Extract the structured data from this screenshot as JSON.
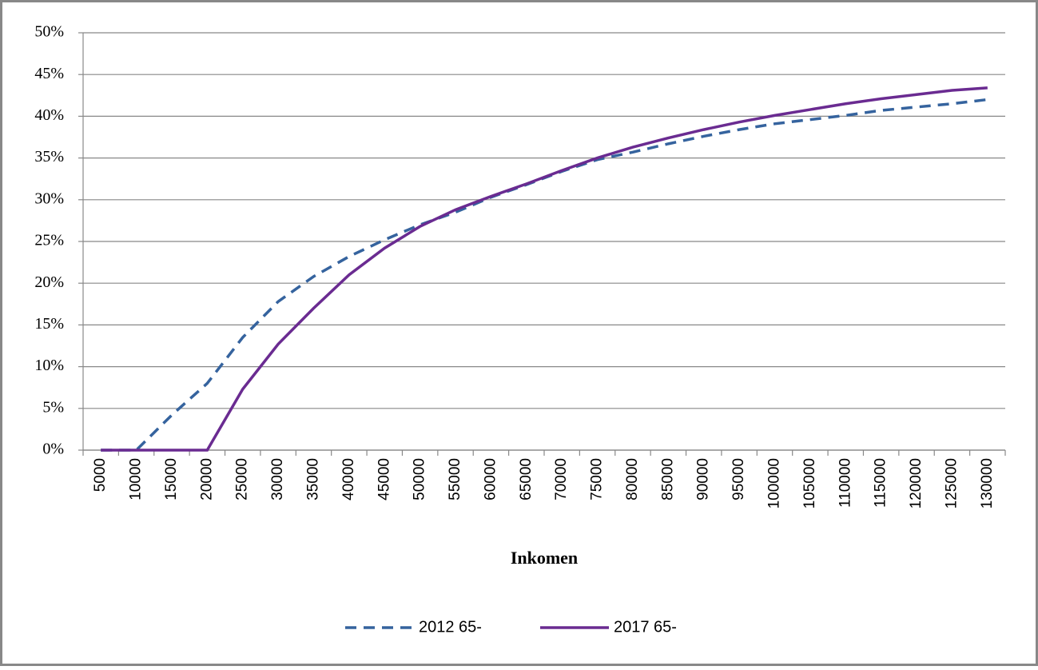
{
  "chart_data": {
    "type": "line",
    "x_label": "Inkomen",
    "categories": [
      "5000",
      "10000",
      "15000",
      "20000",
      "25000",
      "30000",
      "35000",
      "40000",
      "45000",
      "50000",
      "55000",
      "60000",
      "65000",
      "70000",
      "75000",
      "80000",
      "85000",
      "90000",
      "95000",
      "100000",
      "105000",
      "110000",
      "115000",
      "120000",
      "125000",
      "130000"
    ],
    "series": [
      {
        "name": "2012 65-",
        "color": "#35639e",
        "dash": true,
        "values": [
          0,
          0,
          4.2,
          8.0,
          13.5,
          17.8,
          20.8,
          23.2,
          25.2,
          27.0,
          28.5,
          30.3,
          31.8,
          33.4,
          34.8,
          35.7,
          36.7,
          37.6,
          38.4,
          39.1,
          39.6,
          40.1,
          40.7,
          41.1,
          41.5,
          42.0
        ]
      },
      {
        "name": "2017 65-",
        "color": "#6a2b91",
        "dash": false,
        "values": [
          0,
          0,
          0,
          0,
          7.3,
          12.7,
          17.0,
          21.0,
          24.2,
          26.8,
          28.8,
          30.4,
          31.9,
          33.5,
          35.0,
          36.3,
          37.4,
          38.4,
          39.3,
          40.1,
          40.8,
          41.5,
          42.1,
          42.6,
          43.1,
          43.4
        ]
      }
    ],
    "ylim": [
      0,
      50
    ],
    "yticks": [
      {
        "value": 0,
        "label": "0%"
      },
      {
        "value": 5,
        "label": "5%"
      },
      {
        "value": 10,
        "label": "10%"
      },
      {
        "value": 15,
        "label": "15%"
      },
      {
        "value": 20,
        "label": "20%"
      },
      {
        "value": 25,
        "label": "25%"
      },
      {
        "value": 30,
        "label": "30%"
      },
      {
        "value": 35,
        "label": "35%"
      },
      {
        "value": 40,
        "label": "40%"
      },
      {
        "value": 45,
        "label": "45%"
      },
      {
        "value": 50,
        "label": "50%"
      }
    ],
    "grid": true,
    "legend": "bottom"
  }
}
